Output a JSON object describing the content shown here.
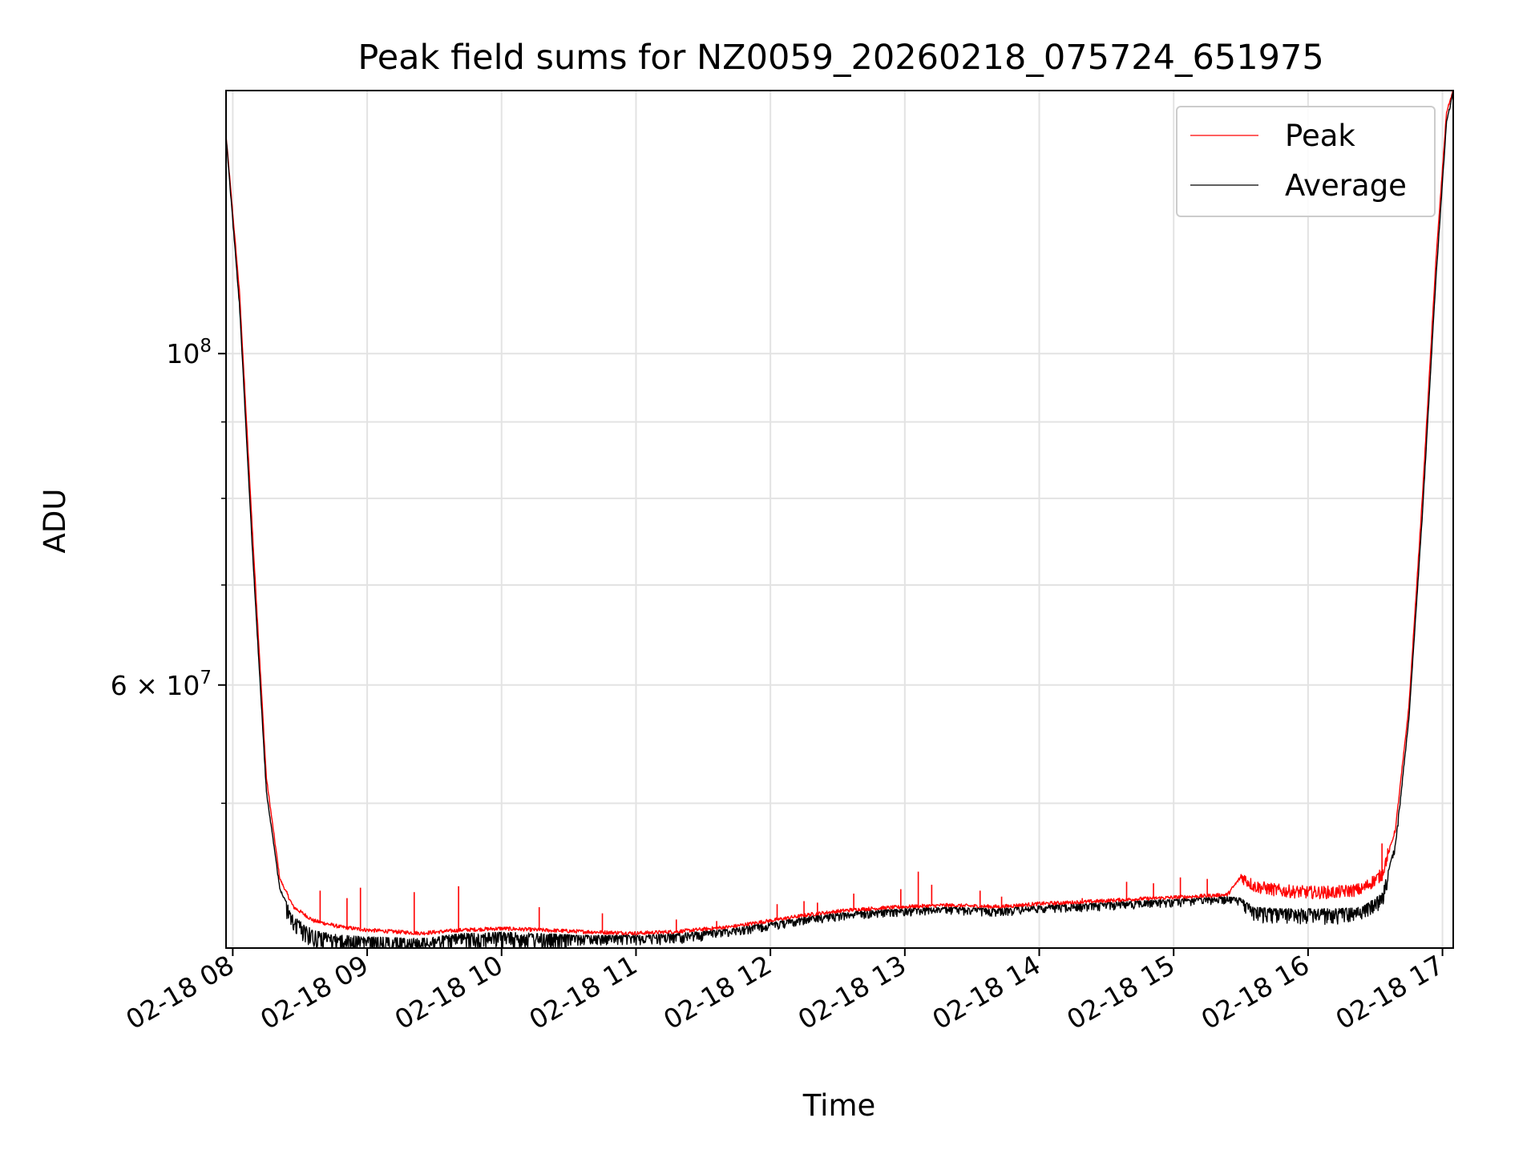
{
  "chart_data": {
    "type": "line",
    "title": "Peak field sums for NZ0059_20260218_075724_651975",
    "xlabel": "Time",
    "ylabel": "ADU",
    "yscale": "log",
    "xlim": [
      7.95,
      17.08
    ],
    "ylim": [
      40000000,
      150000000
    ],
    "grid": true,
    "legend_position": "top-right",
    "x_ticks": [
      {
        "value": 8,
        "label": "02-18 08"
      },
      {
        "value": 9,
        "label": "02-18 09"
      },
      {
        "value": 10,
        "label": "02-18 10"
      },
      {
        "value": 11,
        "label": "02-18 11"
      },
      {
        "value": 12,
        "label": "02-18 12"
      },
      {
        "value": 13,
        "label": "02-18 13"
      },
      {
        "value": 14,
        "label": "02-18 14"
      },
      {
        "value": 15,
        "label": "02-18 15"
      },
      {
        "value": 16,
        "label": "02-18 16"
      },
      {
        "value": 17,
        "label": "02-18 17"
      }
    ],
    "y_major_ticks": [
      {
        "value": 100000000,
        "base": "10",
        "exp": "8"
      },
      {
        "value": 60000000,
        "base": "6 × 10",
        "exp": "7"
      }
    ],
    "y_minor_ticks": [
      50000000,
      70000000,
      80000000,
      90000000
    ],
    "x_unit": "hours (2026-02-18)",
    "series": [
      {
        "name": "Peak",
        "color": "#ff0000",
        "points": [
          [
            7.95,
            140000000
          ],
          [
            8.05,
            110000000
          ],
          [
            8.15,
            75000000
          ],
          [
            8.25,
            52000000
          ],
          [
            8.35,
            44500000
          ],
          [
            8.45,
            42600000
          ],
          [
            8.6,
            41700000
          ],
          [
            8.8,
            41300000
          ],
          [
            9.0,
            41100000
          ],
          [
            9.2,
            41000000
          ],
          [
            9.4,
            40900000
          ],
          [
            9.7,
            41100000
          ],
          [
            10.0,
            41200000
          ],
          [
            10.3,
            41100000
          ],
          [
            10.6,
            41000000
          ],
          [
            11.0,
            40900000
          ],
          [
            11.3,
            41000000
          ],
          [
            11.7,
            41300000
          ],
          [
            12.0,
            41700000
          ],
          [
            12.3,
            42100000
          ],
          [
            12.6,
            42400000
          ],
          [
            13.0,
            42600000
          ],
          [
            13.3,
            42700000
          ],
          [
            13.7,
            42600000
          ],
          [
            14.0,
            42800000
          ],
          [
            14.3,
            42900000
          ],
          [
            14.7,
            43100000
          ],
          [
            15.2,
            43300000
          ],
          [
            15.4,
            43400000
          ],
          [
            15.5,
            44600000
          ],
          [
            15.6,
            43900000
          ],
          [
            15.8,
            43600000
          ],
          [
            16.0,
            43500000
          ],
          [
            16.2,
            43500000
          ],
          [
            16.4,
            43700000
          ],
          [
            16.55,
            44700000
          ],
          [
            16.65,
            48000000
          ],
          [
            16.75,
            58000000
          ],
          [
            16.85,
            80000000
          ],
          [
            16.95,
            115000000
          ],
          [
            17.03,
            145000000
          ],
          [
            17.08,
            150000000
          ]
        ],
        "spikes": [
          [
            8.65,
            43700000
          ],
          [
            8.85,
            43200000
          ],
          [
            8.95,
            43900000
          ],
          [
            9.35,
            43600000
          ],
          [
            9.68,
            44000000
          ],
          [
            10.28,
            42600000
          ],
          [
            10.75,
            42200000
          ],
          [
            11.3,
            41800000
          ],
          [
            11.6,
            41700000
          ],
          [
            12.05,
            42800000
          ],
          [
            12.25,
            43000000
          ],
          [
            12.35,
            42900000
          ],
          [
            12.62,
            43500000
          ],
          [
            12.97,
            43800000
          ],
          [
            13.1,
            45000000
          ],
          [
            13.2,
            44100000
          ],
          [
            13.56,
            43700000
          ],
          [
            13.72,
            43300000
          ],
          [
            14.32,
            43200000
          ],
          [
            14.65,
            44300000
          ],
          [
            14.85,
            44200000
          ],
          [
            15.05,
            44600000
          ],
          [
            15.25,
            44500000
          ],
          [
            16.55,
            47000000
          ]
        ]
      },
      {
        "name": "Average",
        "color": "#000000",
        "points": [
          [
            7.95,
            140000000
          ],
          [
            8.05,
            108000000
          ],
          [
            8.15,
            73000000
          ],
          [
            8.25,
            51000000
          ],
          [
            8.35,
            43900000
          ],
          [
            8.45,
            42000000
          ],
          [
            8.6,
            41100000
          ],
          [
            8.8,
            40800000
          ],
          [
            9.0,
            40700000
          ],
          [
            9.2,
            40650000
          ],
          [
            9.4,
            40600000
          ],
          [
            9.7,
            40900000
          ],
          [
            10.0,
            41000000
          ],
          [
            10.3,
            40900000
          ],
          [
            10.6,
            40800000
          ],
          [
            11.0,
            40800000
          ],
          [
            11.3,
            40900000
          ],
          [
            11.7,
            41200000
          ],
          [
            12.0,
            41600000
          ],
          [
            12.3,
            42000000
          ],
          [
            12.6,
            42300000
          ],
          [
            13.0,
            42500000
          ],
          [
            13.3,
            42600000
          ],
          [
            13.7,
            42500000
          ],
          [
            14.0,
            42700000
          ],
          [
            14.3,
            42800000
          ],
          [
            14.7,
            43000000
          ],
          [
            15.2,
            43200000
          ],
          [
            15.4,
            43300000
          ],
          [
            15.5,
            43200000
          ],
          [
            15.6,
            42600000
          ],
          [
            15.8,
            42500000
          ],
          [
            16.0,
            42500000
          ],
          [
            16.2,
            42500000
          ],
          [
            16.4,
            42600000
          ],
          [
            16.55,
            43500000
          ],
          [
            16.65,
            47000000
          ],
          [
            16.75,
            57000000
          ],
          [
            16.85,
            78000000
          ],
          [
            16.95,
            112000000
          ],
          [
            17.03,
            143000000
          ],
          [
            17.08,
            150000000
          ]
        ]
      }
    ]
  }
}
